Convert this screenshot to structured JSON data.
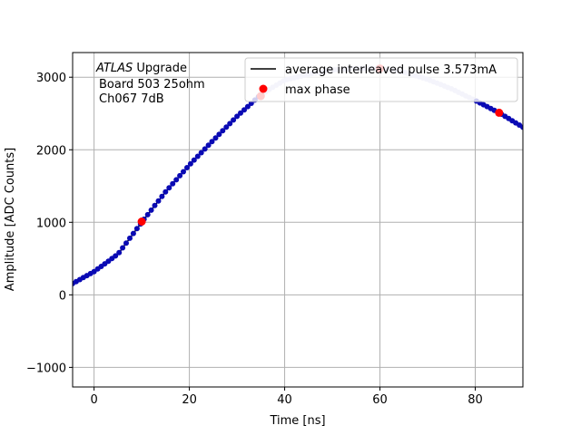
{
  "chart_data": {
    "type": "scatter",
    "xlabel": "Time [ns]",
    "ylabel": "Amplitude [ADC Counts]",
    "xlim": [
      -4.5,
      90
    ],
    "ylim": [
      -1270,
      3340
    ],
    "xticks": [
      0,
      20,
      40,
      60,
      80
    ],
    "yticks": [
      -1000,
      0,
      1000,
      2000,
      3000
    ],
    "ytick_labels": [
      "−1000",
      "0",
      "1000",
      "2000",
      "3000"
    ],
    "grid": true,
    "legend_position": "top-right",
    "annotation": {
      "line1_italic": "ATLAS",
      "line1_rest": " Upgrade",
      "line2": "Board 503 25ohm",
      "line3": "Ch067 7dB"
    },
    "series": [
      {
        "name": "average interleaved pulse 3.573mA",
        "kind": "line",
        "color": "#000000",
        "points": [
          [
            -4.5,
            155
          ],
          [
            0,
            320
          ],
          [
            5,
            560
          ],
          [
            10,
            1000
          ],
          [
            15,
            1420
          ],
          [
            20,
            1790
          ],
          [
            25,
            2130
          ],
          [
            30,
            2460
          ],
          [
            35,
            2760
          ],
          [
            40,
            2960
          ],
          [
            45,
            3040
          ],
          [
            50,
            3100
          ],
          [
            55,
            3120
          ],
          [
            60,
            3120
          ],
          [
            65,
            3070
          ],
          [
            70,
            2970
          ],
          [
            75,
            2840
          ],
          [
            80,
            2680
          ],
          [
            85,
            2510
          ],
          [
            90,
            2310
          ]
        ]
      },
      {
        "name": "samples",
        "kind": "markers",
        "color": "#0a0ab4",
        "faded_color": "#c8c8ec",
        "x_start": -4.5,
        "x_end": 90,
        "x_step": 0.75,
        "faded_x_range": [
          35,
          80
        ]
      },
      {
        "name": "max phase",
        "kind": "markers",
        "color": "#ff0000",
        "points": [
          [
            10,
            1010
          ],
          [
            35,
            2740
          ],
          [
            60,
            3120
          ],
          [
            85,
            2510
          ]
        ]
      }
    ]
  }
}
